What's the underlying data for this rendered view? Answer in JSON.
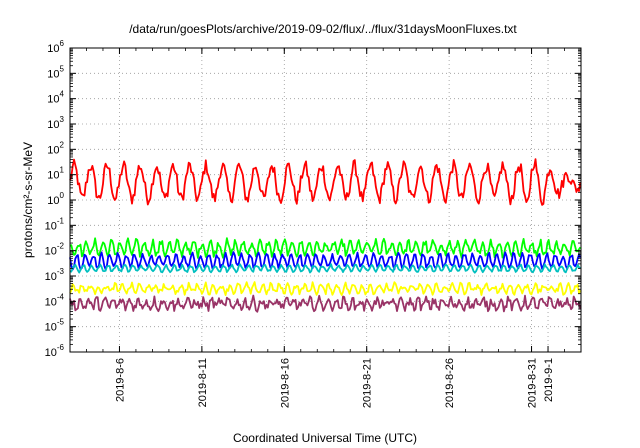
{
  "chart_data": {
    "type": "line",
    "title": "/data/run/goesPlots/archive/2019-09-02/flux/../flux/31daysMoonFluxes.txt",
    "xlabel": "Coordinated Universal Time (UTC)",
    "ylabel": "protons/cm²-s-sr-MeV",
    "y_scale": "log",
    "ylim_exp": [
      -6,
      6
    ],
    "xlim_days": [
      "2019-08-03",
      "2019-09-03"
    ],
    "grid": true,
    "y_ticks": [
      {
        "base": "10",
        "exp": "-6"
      },
      {
        "base": "10",
        "exp": "-5"
      },
      {
        "base": "10",
        "exp": "-4"
      },
      {
        "base": "10",
        "exp": "-3"
      },
      {
        "base": "10",
        "exp": "-2"
      },
      {
        "base": "10",
        "exp": "-1"
      },
      {
        "base": "10",
        "exp": "0"
      },
      {
        "base": "10",
        "exp": "1"
      },
      {
        "base": "10",
        "exp": "2"
      },
      {
        "base": "10",
        "exp": "3"
      },
      {
        "base": "10",
        "exp": "4"
      },
      {
        "base": "10",
        "exp": "5"
      },
      {
        "base": "10",
        "exp": "6"
      }
    ],
    "x_ticks": [
      "2019-8-6",
      "2019-8-11",
      "2019-8-16",
      "2019-8-21",
      "2019-8-26",
      "2019-8-31",
      "2019-9-1"
    ],
    "x_tick_day_offsets": [
      3,
      8,
      13,
      18,
      23,
      28,
      29
    ],
    "series": [
      {
        "color": "#ff0000",
        "log_center": 0.7,
        "modulation": 0.65,
        "period_days": 1.0,
        "noise": 0.25
      },
      {
        "color": "#00ff00",
        "log_center": -1.9,
        "modulation": 0.25,
        "period_days": 0.5,
        "noise": 0.15
      },
      {
        "color": "#0000ff",
        "log_center": -2.4,
        "modulation": 0.25,
        "period_days": 0.5,
        "noise": 0.1
      },
      {
        "color": "#00bfbf",
        "log_center": -2.7,
        "modulation": 0.12,
        "period_days": 0.5,
        "noise": 0.05
      },
      {
        "color": "#ffff00",
        "log_center": -3.5,
        "modulation": 0.15,
        "period_days": 0.5,
        "noise": 0.12
      },
      {
        "color": "#993366",
        "log_center": -4.1,
        "modulation": 0.15,
        "period_days": 0.5,
        "noise": 0.18
      }
    ]
  }
}
